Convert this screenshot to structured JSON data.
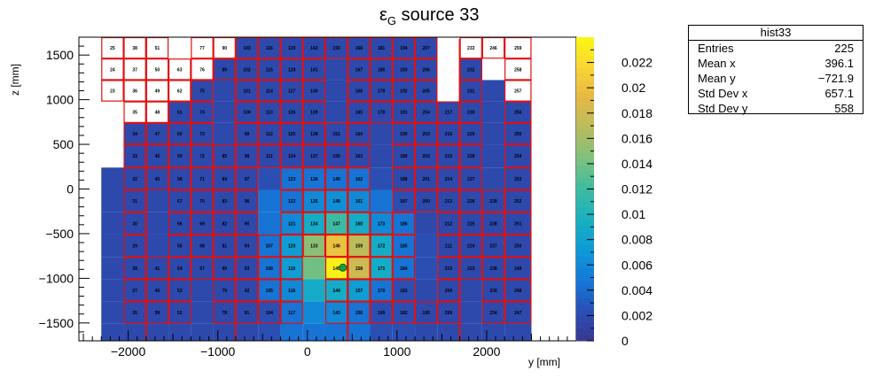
{
  "chart_data": {
    "type": "heatmap",
    "title": "ε",
    "title_sub": "G",
    "title_rest": " source 33",
    "xlabel": "y [mm]",
    "ylabel": "z [mm]",
    "xlim": [
      -2550,
      3000
    ],
    "ylim": [
      -1700,
      1700
    ],
    "x_ticks": [
      -2000,
      -1000,
      0,
      1000,
      2000
    ],
    "y_ticks": [
      -1500,
      -1000,
      -500,
      0,
      500,
      1000,
      1500
    ],
    "grid": false,
    "colorbar": {
      "min": 0,
      "max": 0.024,
      "ticks": [
        0,
        0.002,
        0.004,
        0.006,
        0.008,
        0.01,
        0.012,
        0.014,
        0.016,
        0.018,
        0.02,
        0.022
      ],
      "tick_labels": [
        "0",
        "0.002",
        "0.004",
        "0.006",
        "0.008",
        "0.01",
        "0.012",
        "0.014",
        "0.016",
        "0.018",
        "0.02",
        "0.022"
      ],
      "stops": [
        "#3b3690",
        "#2a4fb5",
        "#1478d8",
        "#0d9ad6",
        "#19b0c0",
        "#3dbba2",
        "#7dc07e",
        "#b7bc5e",
        "#e4b745",
        "#fad436",
        "#f9f812"
      ]
    },
    "x_edges": [
      -2300,
      -2050,
      -1800,
      -1550,
      -1300,
      -1050,
      -800,
      -550,
      -300,
      -50,
      200,
      450,
      700,
      950,
      1200,
      1450,
      1700,
      1950,
      2200,
      2500
    ],
    "z_rows_top": [
      1700,
      1460,
      1220,
      980,
      740,
      500,
      240,
      -10,
      -260,
      -510,
      -760,
      -1010,
      -1260,
      -1510
    ],
    "z_rows_bottom": [
      1460,
      1220,
      980,
      740,
      500,
      240,
      -10,
      -260,
      -510,
      -760,
      -1010,
      -1260,
      -1510,
      -1700
    ],
    "values": [
      [
        null,
        0.0,
        0.0,
        0.0,
        null,
        0.0,
        0.0018,
        0.0018,
        0.0018,
        0.0018,
        0.0018,
        0.0018,
        0.0018,
        0.0018,
        0.0018,
        null,
        0.0,
        0.0,
        0.0
      ],
      [
        null,
        0.0,
        0.0,
        0.0,
        0.0,
        0.0018,
        0.0018,
        0.0018,
        0.0018,
        0.0018,
        0.0018,
        0.0018,
        0.0018,
        0.0018,
        0.0018,
        null,
        0.0018,
        null,
        0.0
      ],
      [
        null,
        0.0,
        0.0,
        0.0,
        0.0018,
        0.0018,
        0.0018,
        0.0018,
        0.0018,
        0.0018,
        0.0018,
        0.0018,
        0.0018,
        0.0018,
        0.0018,
        null,
        0.0018,
        0.0018,
        0.0
      ],
      [
        null,
        null,
        0.0,
        0.0018,
        0.0018,
        0.0018,
        0.0018,
        0.0018,
        0.0018,
        0.0018,
        0.0018,
        0.0018,
        0.0018,
        0.0018,
        0.0018,
        0.0018,
        0.0018,
        0.0018,
        0.0018
      ],
      [
        null,
        0.0018,
        0.0018,
        0.0018,
        0.0018,
        0.0018,
        0.0018,
        0.0018,
        0.0018,
        0.0018,
        0.0018,
        0.0018,
        0.0018,
        0.0018,
        0.0018,
        0.0018,
        0.0018,
        0.0018,
        0.0018
      ],
      [
        null,
        0.0018,
        0.0018,
        0.0018,
        0.0018,
        0.0018,
        0.0018,
        0.0018,
        0.0018,
        0.0018,
        0.0018,
        0.0018,
        0.0018,
        0.0018,
        0.0018,
        0.0018,
        0.0018,
        0.0018,
        0.0018
      ],
      [
        0.0018,
        0.0018,
        0.0018,
        0.0018,
        0.0018,
        0.0018,
        0.0018,
        0.0023,
        0.0045,
        0.0045,
        0.0045,
        0.0045,
        0.0023,
        0.0018,
        0.0018,
        0.0018,
        0.0018,
        0.0018,
        0.0018
      ],
      [
        0.0018,
        0.0018,
        0.0018,
        0.0018,
        0.0018,
        0.0018,
        0.0018,
        0.0045,
        0.0045,
        0.006,
        0.0065,
        0.006,
        0.0045,
        0.0023,
        0.0018,
        0.0018,
        0.0018,
        0.0018,
        0.0018
      ],
      [
        0.0018,
        0.0018,
        0.0018,
        0.0018,
        0.0018,
        0.0018,
        0.0018,
        0.0045,
        0.006,
        0.009,
        0.012,
        0.009,
        0.006,
        0.0045,
        0.0018,
        0.0018,
        0.0018,
        0.0018,
        0.0018
      ],
      [
        0.0018,
        0.0018,
        0.0018,
        0.0018,
        0.0018,
        0.0018,
        0.0018,
        0.0045,
        0.0075,
        0.015,
        0.02,
        0.017,
        0.009,
        0.0045,
        0.0023,
        0.0018,
        0.0018,
        0.0018,
        0.0018
      ],
      [
        0.0018,
        0.0018,
        0.0018,
        0.0018,
        0.0018,
        0.0018,
        0.0018,
        0.0045,
        0.0075,
        0.014,
        0.0235,
        0.018,
        0.009,
        0.0045,
        0.0023,
        0.0018,
        0.0018,
        0.0018,
        0.0018
      ],
      [
        0.0018,
        0.0018,
        0.0018,
        0.0018,
        0.0018,
        0.0018,
        0.0018,
        0.0045,
        0.006,
        0.009,
        0.009,
        0.0075,
        0.0045,
        0.0023,
        0.0018,
        0.0018,
        0.0018,
        0.0018,
        0.0018
      ],
      [
        0.0018,
        0.0018,
        0.0018,
        0.0018,
        0.0018,
        0.0018,
        0.0018,
        0.0023,
        0.0045,
        0.006,
        0.006,
        0.0045,
        0.0023,
        0.0023,
        0.0018,
        0.0018,
        0.0018,
        0.0018,
        0.0018
      ],
      [
        0.0018,
        0.0018,
        0.0018,
        0.0018,
        0.0018,
        0.0018,
        0.0018,
        0.0023,
        0.0045,
        0.0045,
        0.0045,
        0.0045,
        0.0023,
        0.0023,
        0.0018,
        0.0018,
        0.0018,
        0.0018,
        0.0018
      ]
    ],
    "outlined_cols": [
      1,
      2,
      3,
      5,
      6,
      7,
      8,
      9,
      10,
      11,
      12,
      13,
      14,
      16,
      17,
      18
    ],
    "white_box_rows": [
      0,
      1,
      2,
      3
    ],
    "labels": [
      [
        null,
        "25",
        "38",
        "51",
        null,
        "77",
        "90",
        "103",
        "116",
        "129",
        "142",
        "155",
        "168",
        "181",
        "194",
        "207",
        null,
        "233",
        "246",
        "259"
      ],
      [
        null,
        "24",
        "37",
        "50",
        "63",
        "76",
        "89",
        "102",
        "115",
        "128",
        "141",
        null,
        "167",
        "180",
        "193",
        "206",
        null,
        "232",
        null,
        "258"
      ],
      [
        null,
        "23",
        "36",
        "49",
        "62",
        "75",
        null,
        "101",
        "114",
        "127",
        "140",
        null,
        "166",
        "179",
        "192",
        "205",
        null,
        "231",
        null,
        "257"
      ],
      [
        null,
        null,
        "35",
        "48",
        "61",
        "74",
        null,
        "100",
        "113",
        "126",
        "139",
        null,
        "165",
        "178",
        "191",
        "204",
        "217",
        "230",
        null,
        "256"
      ],
      [
        null,
        null,
        "34",
        "47",
        "60",
        "73",
        null,
        "99",
        "112",
        "125",
        "138",
        "151",
        "164",
        null,
        "190",
        "203",
        "216",
        "229",
        null,
        "255"
      ],
      [
        null,
        null,
        "33",
        "46",
        "59",
        "72",
        "85",
        "98",
        "111",
        "124",
        "137",
        "150",
        "163",
        null,
        "189",
        "202",
        "215",
        "228",
        null,
        "254"
      ],
      [
        null,
        null,
        "32",
        "45",
        "58",
        "71",
        "84",
        "97",
        null,
        "123",
        "136",
        "149",
        "162",
        null,
        "188",
        "201",
        "214",
        "227",
        null,
        "253"
      ],
      [
        null,
        null,
        "31",
        null,
        "57",
        "70",
        "83",
        "96",
        null,
        "122",
        "135",
        "148",
        "161",
        null,
        "187",
        "200",
        "213",
        "226",
        "239",
        "252"
      ],
      [
        null,
        null,
        "30",
        null,
        "56",
        "69",
        "82",
        "95",
        null,
        "121",
        "134",
        "147",
        "160",
        "173",
        "186",
        null,
        "212",
        "225",
        "238",
        "251"
      ],
      [
        null,
        null,
        "29",
        null,
        "55",
        "68",
        "81",
        "94",
        "107",
        "120",
        "133",
        "146",
        "159",
        "172",
        "185",
        null,
        "211",
        "224",
        "237",
        "250"
      ],
      [
        null,
        null,
        "28",
        "41",
        "54",
        "67",
        "80",
        "93",
        "106",
        "119",
        null,
        "145",
        "158",
        "171",
        "184",
        null,
        "210",
        "223",
        "236",
        "249"
      ],
      [
        null,
        null,
        "27",
        "40",
        "53",
        null,
        "79",
        "92",
        "105",
        "118",
        null,
        "144",
        "157",
        "170",
        "183",
        null,
        "209",
        null,
        "235",
        "248"
      ],
      [
        null,
        null,
        "26",
        "39",
        "52",
        null,
        "78",
        "91",
        "104",
        "117",
        null,
        "143",
        "156",
        "169",
        "182",
        "195",
        "208",
        null,
        "234",
        "247"
      ]
    ],
    "source_point": {
      "y": 396,
      "z": -880
    },
    "stats": {
      "name": "hist33",
      "rows": [
        {
          "label": "Entries",
          "value": "225"
        },
        {
          "label": "Mean x",
          "value": "396.1"
        },
        {
          "label": "Mean y",
          "value": "−721.9"
        },
        {
          "label": "Std Dev x",
          "value": "657.1"
        },
        {
          "label": "Std Dev y",
          "value": "558"
        }
      ]
    }
  }
}
